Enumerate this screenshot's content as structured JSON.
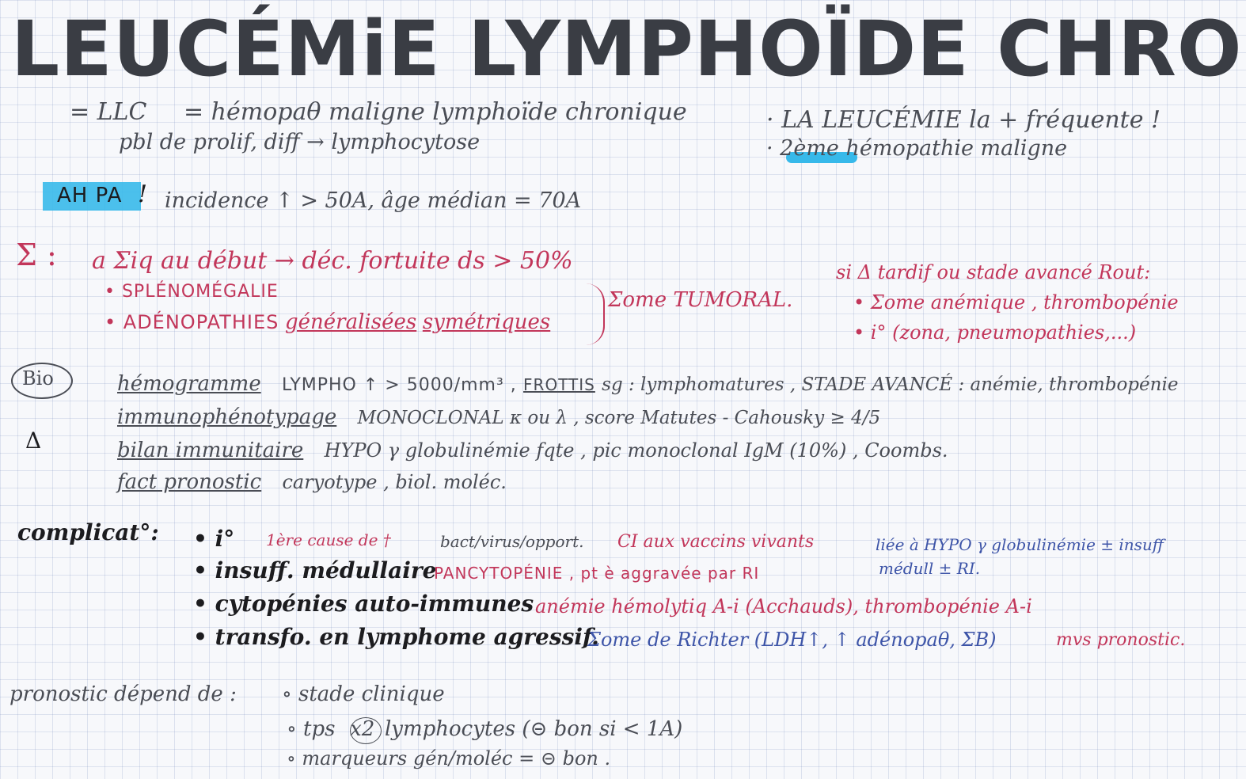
{
  "title": "LEUCÉMiE LYMPHOÏDE CHRONiQ",
  "def": {
    "llc": "= LLC",
    "definition": "= hémopaθ maligne lymphoïde chronique",
    "mechanism": "pbl de prolif, diff → lymphocytose",
    "freq1": "· LA LEUCÉMIE la + fréquente !",
    "freq2": "· 2ème hémopathie maligne"
  },
  "epidemio": {
    "label": "AH PA",
    "mark": "!",
    "text": "incidence ↑ > 50A, âge médian = 70A"
  },
  "clinic": {
    "sigma": "Σ :",
    "line1": "a Σiq au début → déc. fortuite ds > 50%",
    "item1": "• SPLÉNOMÉGALIE",
    "item2_a": "• ADÉNOPATHIES",
    "item2_b": "généralisées",
    "item2_c": "symétriques",
    "tumoral": "Σome TUMORAL.",
    "late_title": "si Δ tardif ou stade avancé Rout:",
    "late1": "• Σome anémique , thrombopénie",
    "late2": "• i° (zona, pneumopathies,...)"
  },
  "bio": {
    "badge": "Bio",
    "delta": "Δ",
    "r1_label": "hémogramme",
    "r1_a": "LYMPHO ↑ > 5000/mm³ ,",
    "r1_b": "FROTTIS",
    "r1_c": "sg : lymphomatures , STADE AVANCÉ : anémie, thrombopénie",
    "r2_label": "immunophénotypage",
    "r2_text": "MONOCLONAL κ ou λ , score Matutes - Cahousky ≥ 4/5",
    "r3_label": "bilan immunitaire",
    "r3_text": "HYPO γ globulinémie fqte , pic monoclonal IgM (10%) , Coombs.",
    "r4_label": "fact pronostic",
    "r4_text": "caryotype , biol. moléc."
  },
  "compl": {
    "label": "complicat°:",
    "c1": "• i°",
    "c1_red": "1ère cause de †",
    "c1_gray": "bact/virus/opport.",
    "c1_red2": "CI aux vaccins vivants",
    "c1_blue1": "liée à HYPO γ globulinémie ± insuff",
    "c1_blue2": "médull ± RI.",
    "c2": "• insuff. médullaire",
    "c2_red": "PANCYTOPÉNIE , pt è aggravée par RI",
    "c3": "• cytopénies auto-immunes",
    "c3_red": "anémie hémolytiq A-i (Acchauds), thrombopénie A-i",
    "c4": "• transfo. en lymphome agressif.",
    "c4_blue": "Σome de Richter (LDH↑, ↑ adénopaθ, ΣB)",
    "c4_red": "mvs pronostic."
  },
  "prono": {
    "label": "pronostic dépend de :",
    "p1": "∘ stade clinique",
    "p2_a": "∘ tps",
    "p2_circ": "x2",
    "p2_b": "lymphocytes (⊝ bon si < 1A)",
    "p3": "∘ marqueurs gén/moléc = ⊝ bon ."
  }
}
